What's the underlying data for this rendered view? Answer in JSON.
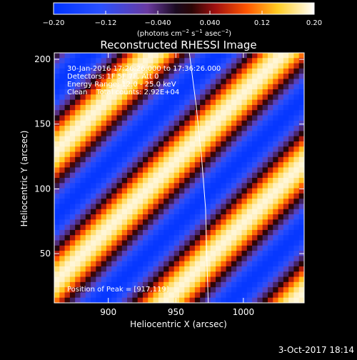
{
  "colorbar": {
    "ticks": [
      {
        "value": -0.2,
        "label": "−0.20"
      },
      {
        "value": -0.12,
        "label": "−0.12"
      },
      {
        "value": -0.04,
        "label": "−0.040"
      },
      {
        "value": 0.04,
        "label": "0.040"
      },
      {
        "value": 0.12,
        "label": "0.12"
      },
      {
        "value": 0.2,
        "label": "0.20"
      }
    ],
    "unit_main": "(photons cm",
    "unit_exp1": "−2",
    "unit_mid": " s",
    "unit_exp2": "−1",
    "unit_mid2": " asec",
    "unit_exp3": "−2",
    "unit_end": ")"
  },
  "plot": {
    "title": "Reconstructed RHESSI Image",
    "xlabel": "Heliocentric X (arcsec)",
    "ylabel": "Heliocentric Y (arcsec)",
    "annotations": [
      "30-Jan-2016 17:26:26.000 to 17:36:26.000",
      "Detectors: 1F 5F 7F, Att 0",
      "Energy Range: 12.0 - 25.0 keV",
      "Clean    Total counts: 2.92E+04"
    ],
    "peak_text": "Position of Peak = [917,119]"
  },
  "footer": {
    "timestamp": "3-Oct-2017 18:14"
  },
  "chart_data": {
    "type": "heatmap",
    "title": "Reconstructed RHESSI Image",
    "xlabel": "Heliocentric X (arcsec)",
    "ylabel": "Heliocentric Y (arcsec)",
    "xlim": [
      860,
      1045
    ],
    "ylim": [
      12,
      205
    ],
    "xticks": [
      900,
      950,
      1000
    ],
    "yticks": [
      50,
      100,
      150,
      200
    ],
    "colorbar_range": [
      -0.2,
      0.2
    ],
    "colormap": "blue-black-red-yellow-white",
    "pattern": "diagonal stripes running lower-left to upper-right",
    "peak_position": [
      917,
      119
    ],
    "limb_curve": [
      [
        960,
        205
      ],
      [
        965,
        165
      ],
      [
        969,
        125
      ],
      [
        972,
        85
      ],
      [
        973,
        45
      ],
      [
        974,
        12
      ]
    ]
  }
}
